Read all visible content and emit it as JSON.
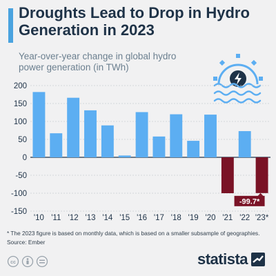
{
  "title": "Droughts Lead to Drop in Hydro Generation in 2023",
  "subtitle": "Year-over-year change in global hydro power generation (in TWh)",
  "footnote": "* The 2023 figure is based on monthly data, which is based on a smaller subsample of geographies.",
  "source": "Source: Ember",
  "brand": "statista",
  "icons": [
    "creative-commons-icon",
    "attribution-icon",
    "no-derivatives-icon",
    "hydro-power-icon",
    "statista-logo-icon"
  ],
  "colors": {
    "positive": "#5caef2",
    "negative": "#7a1326",
    "text": "#1e3247",
    "accent": "#4aa3df"
  },
  "chart_data": {
    "type": "bar",
    "categories": [
      "'10",
      "'11",
      "'12",
      "'13",
      "'14",
      "'15",
      "'16",
      "'17",
      "'18",
      "'19",
      "'20",
      "'21",
      "'22",
      "'23*"
    ],
    "values": [
      182,
      67,
      166,
      131,
      89,
      5,
      126,
      58,
      120,
      46,
      119,
      -100,
      73,
      -99.7
    ],
    "data_labels": [
      {
        "index": 13,
        "text": "-99.7*"
      }
    ],
    "yticks": [
      200,
      150,
      100,
      50,
      0,
      -50,
      -100,
      -150
    ],
    "ylim": [
      -150,
      200
    ],
    "grid": true,
    "legend": "none"
  }
}
